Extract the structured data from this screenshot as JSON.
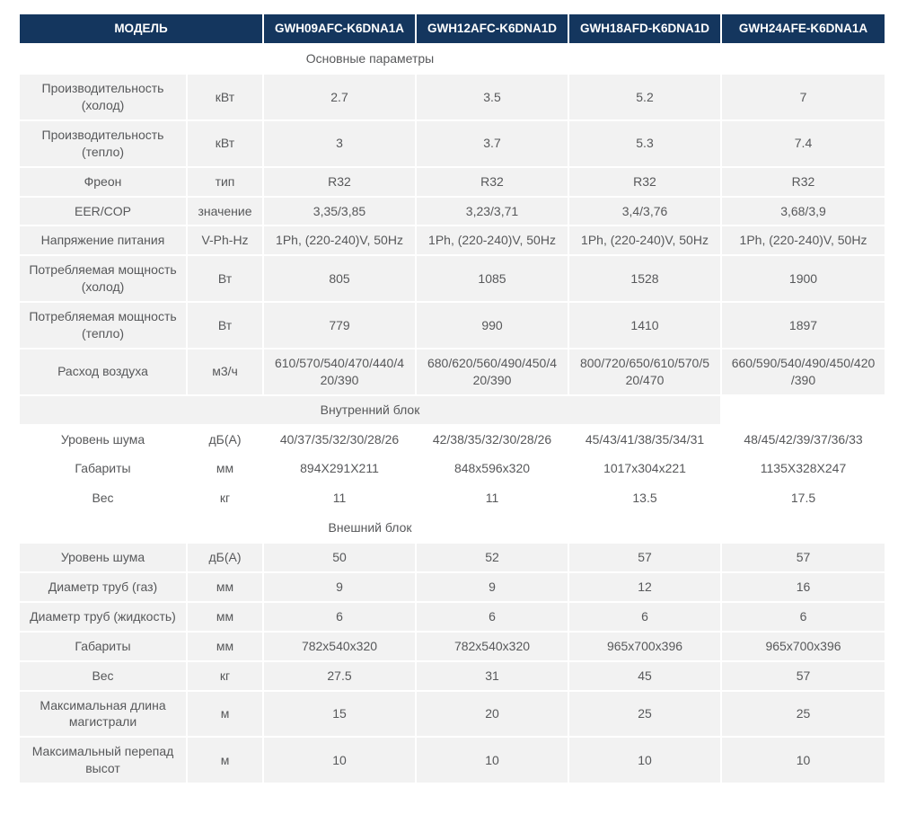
{
  "colors": {
    "header_bg": "#14365e",
    "header_text": "#ffffff",
    "row_alt_bg": "#f2f2f2",
    "body_text": "#57585a",
    "page_bg": "#ffffff"
  },
  "table": {
    "model_header": "МОДЕЛЬ",
    "models": [
      "GWH09AFC-K6DNA1A",
      "GWH12AFC-K6DNA1D",
      "GWH18AFD-K6DNA1D",
      "GWH24AFE-K6DNA1A"
    ],
    "sections": [
      {
        "title": "Основные параметры",
        "rows": [
          {
            "param": "Производительность (холод)",
            "unit": "кВт",
            "values": [
              "2.7",
              "3.5",
              "5.2",
              "7"
            ]
          },
          {
            "param": "Производительность (тепло)",
            "unit": "кВт",
            "values": [
              "3",
              "3.7",
              "5.3",
              "7.4"
            ]
          },
          {
            "param": "Фреон",
            "unit": "тип",
            "values": [
              "R32",
              "R32",
              "R32",
              "R32"
            ]
          },
          {
            "param": "EER/COP",
            "unit": "значение",
            "values": [
              "3,35/3,85",
              "3,23/3,71",
              "3,4/3,76",
              "3,68/3,9"
            ]
          },
          {
            "param": "Напряжение питания",
            "unit": "V-Ph-Hz",
            "values": [
              "1Ph, (220-240)V, 50Hz",
              "1Ph, (220-240)V, 50Hz",
              "1Ph, (220-240)V, 50Hz",
              "1Ph, (220-240)V, 50Hz"
            ]
          },
          {
            "param": "Потребляемая мощность (холод)",
            "unit": "Вт",
            "values": [
              "805",
              "1085",
              "1528",
              "1900"
            ]
          },
          {
            "param": "Потребляемая мощность (тепло)",
            "unit": "Вт",
            "values": [
              "779",
              "990",
              "1410",
              "1897"
            ]
          },
          {
            "param": "Расход воздуха",
            "unit": "м3/ч",
            "values": [
              "610/570/540/470/440/420/390",
              "680/620/560/490/450/420/390",
              "800/720/650/610/570/520/470",
              "660/590/540/490/450/420/390"
            ]
          }
        ]
      },
      {
        "title": "Внутренний блок",
        "rows": [
          {
            "param": "Уровень шума",
            "unit": "дБ(А)",
            "values": [
              "40/37/35/32/30/28/26",
              "42/38/35/32/30/28/26",
              "45/43/41/38/35/34/31",
              "48/45/42/39/37/36/33"
            ]
          },
          {
            "param": "Габариты",
            "unit": "мм",
            "values": [
              "894X291X211",
              "848x596x320",
              "1017x304x221",
              "1135X328X247"
            ]
          },
          {
            "param": "Вес",
            "unit": "кг",
            "values": [
              "11",
              "11",
              "13.5",
              "17.5"
            ]
          }
        ]
      },
      {
        "title": "Внешний блок",
        "rows": [
          {
            "param": "Уровень шума",
            "unit": "дБ(А)",
            "values": [
              "50",
              "52",
              "57",
              "57"
            ]
          },
          {
            "param": "Диаметр труб (газ)",
            "unit": "мм",
            "values": [
              "9",
              "9",
              "12",
              "16"
            ]
          },
          {
            "param": "Диаметр труб (жидкость)",
            "unit": "мм",
            "values": [
              "6",
              "6",
              "6",
              "6"
            ]
          },
          {
            "param": "Габариты",
            "unit": "мм",
            "values": [
              "782x540x320",
              "782x540x320",
              "965x700x396",
              "965x700x396"
            ]
          },
          {
            "param": "Вес",
            "unit": "кг",
            "values": [
              "27.5",
              "31",
              "45",
              "57"
            ]
          },
          {
            "param": "Максимальная длина магистрали",
            "unit": "м",
            "values": [
              "15",
              "20",
              "25",
              "25"
            ]
          },
          {
            "param": "Максимальный перепад высот",
            "unit": "м",
            "values": [
              "10",
              "10",
              "10",
              "10"
            ]
          }
        ]
      }
    ]
  }
}
